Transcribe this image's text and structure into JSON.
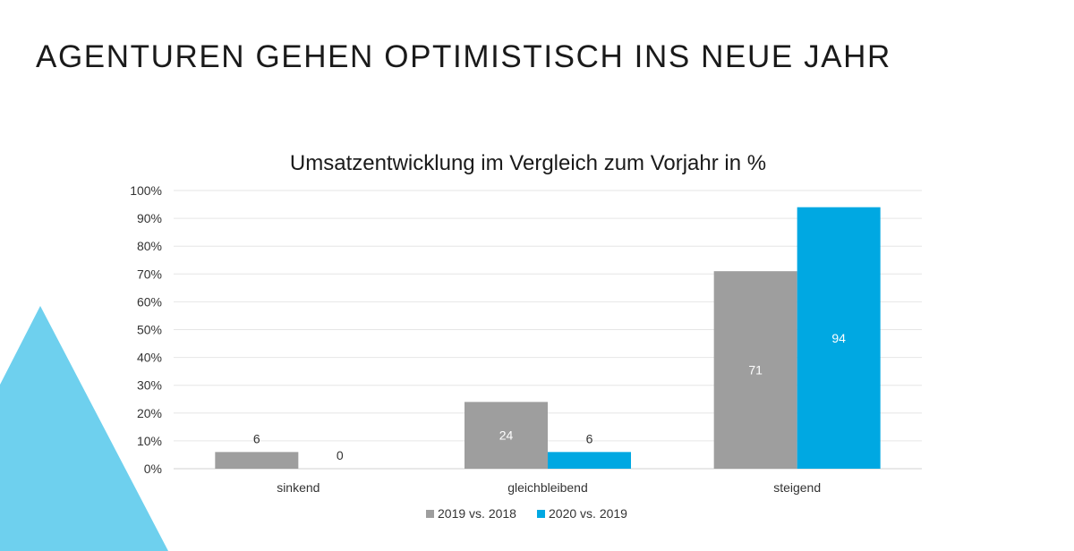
{
  "slide": {
    "headline": "AGENTUREN GEHEN OPTIMISTISCH INS NEUE JAHR",
    "accent_color": "#6ed0ee"
  },
  "chart_data": {
    "type": "bar",
    "title": "Umsatzentwicklung im Vergleich zum Vorjahr in %",
    "categories": [
      "sinkend",
      "gleichbleibend",
      "steigend"
    ],
    "series": [
      {
        "name": "2019 vs. 2018",
        "values": [
          6,
          24,
          71
        ],
        "color": "#9e9e9e"
      },
      {
        "name": "2020 vs. 2019",
        "values": [
          0,
          6,
          94
        ],
        "color": "#00a8e2"
      }
    ],
    "data_labels": [
      [
        "6",
        "24",
        "71"
      ],
      [
        "0",
        "6",
        "94"
      ]
    ],
    "yticks": [
      "0%",
      "10%",
      "20%",
      "30%",
      "40%",
      "50%",
      "60%",
      "70%",
      "80%",
      "90%",
      "100%"
    ],
    "ylim": [
      0,
      100
    ],
    "grid": true,
    "legend": "bottom"
  }
}
